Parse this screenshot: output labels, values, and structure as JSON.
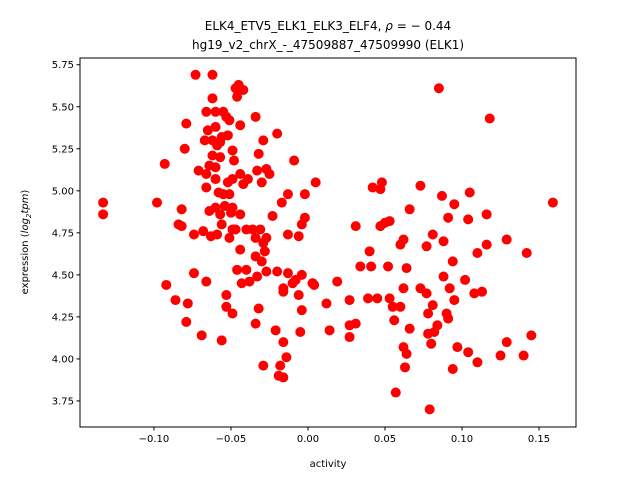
{
  "chart_data": {
    "type": "scatter",
    "title_line1_prefix": "ELK4_ETV5_ELK1_ELK3_ELF4, ",
    "title_rho": "ρ",
    "title_line1_suffix": " = − 0.44",
    "title_line2": "hg19_v2_chrX_-_47509887_47509990 (ELK1)",
    "xlabel": "activity",
    "ylabel_prefix": "expression (",
    "ylabel_log": "log",
    "ylabel_sub": "2",
    "ylabel_tpm": "tpm",
    "ylabel_suffix": ")",
    "xlim": [
      -0.148,
      0.174
    ],
    "ylim": [
      3.595,
      5.79
    ],
    "xticks": [
      -0.1,
      -0.05,
      0.0,
      0.05,
      0.1,
      0.15
    ],
    "xtick_labels": [
      "−0.10",
      "−0.05",
      "0.00",
      "0.05",
      "0.10",
      "0.15"
    ],
    "yticks": [
      3.75,
      4.0,
      4.25,
      4.5,
      4.75,
      5.0,
      5.25,
      5.5,
      5.75
    ],
    "ytick_labels": [
      "3.75",
      "4.00",
      "4.25",
      "4.50",
      "4.75",
      "5.00",
      "5.25",
      "5.50",
      "5.75"
    ],
    "grid": false,
    "marker_color": "#ff0000",
    "points": [
      [
        0.085,
        5.61
      ],
      [
        0.118,
        5.43
      ],
      [
        0.159,
        4.93
      ],
      [
        0.005,
        5.05
      ],
      [
        0.042,
        5.02
      ],
      [
        0.048,
        5.05
      ],
      [
        0.047,
        5.01
      ],
      [
        0.073,
        5.03
      ],
      [
        0.087,
        4.97
      ],
      [
        0.105,
        4.99
      ],
      [
        0.095,
        4.92
      ],
      [
        0.066,
        4.89
      ],
      [
        0.091,
        4.84
      ],
      [
        0.104,
        4.83
      ],
      [
        0.116,
        4.86
      ],
      [
        0.031,
        4.79
      ],
      [
        0.047,
        4.79
      ],
      [
        0.053,
        4.82
      ],
      [
        0.05,
        4.81
      ],
      [
        0.081,
        4.74
      ],
      [
        0.062,
        4.71
      ],
      [
        0.06,
        4.68
      ],
      [
        0.077,
        4.67
      ],
      [
        0.088,
        4.7
      ],
      [
        0.129,
        4.71
      ],
      [
        0.116,
        4.68
      ],
      [
        0.11,
        4.63
      ],
      [
        0.142,
        4.63
      ],
      [
        0.04,
        4.64
      ],
      [
        0.034,
        4.55
      ],
      [
        0.041,
        4.55
      ],
      [
        0.052,
        4.55
      ],
      [
        0.064,
        4.54
      ],
      [
        0.094,
        4.58
      ],
      [
        0.088,
        4.49
      ],
      [
        0.102,
        4.47
      ],
      [
        0.003,
        4.45
      ],
      [
        0.019,
        4.46
      ],
      [
        0.062,
        4.42
      ],
      [
        0.073,
        4.42
      ],
      [
        0.077,
        4.39
      ],
      [
        0.092,
        4.42
      ],
      [
        0.108,
        4.39
      ],
      [
        0.113,
        4.4
      ],
      [
        0.012,
        4.33
      ],
      [
        0.027,
        4.35
      ],
      [
        0.039,
        4.36
      ],
      [
        0.045,
        4.36
      ],
      [
        0.053,
        4.36
      ],
      [
        0.055,
        4.31
      ],
      [
        0.06,
        4.31
      ],
      [
        0.081,
        4.32
      ],
      [
        0.095,
        4.35
      ],
      [
        0.078,
        4.27
      ],
      [
        0.09,
        4.27
      ],
      [
        0.091,
        4.24
      ],
      [
        0.014,
        4.17
      ],
      [
        0.027,
        4.2
      ],
      [
        0.031,
        4.21
      ],
      [
        0.027,
        4.13
      ],
      [
        0.056,
        4.23
      ],
      [
        0.066,
        4.18
      ],
      [
        0.078,
        4.15
      ],
      [
        0.082,
        4.16
      ],
      [
        0.084,
        4.2
      ],
      [
        0.08,
        4.09
      ],
      [
        0.062,
        4.07
      ],
      [
        0.064,
        4.03
      ],
      [
        0.063,
        3.95
      ],
      [
        0.097,
        4.07
      ],
      [
        0.104,
        4.04
      ],
      [
        0.11,
        3.98
      ],
      [
        0.094,
        3.94
      ],
      [
        0.125,
        4.02
      ],
      [
        0.129,
        4.1
      ],
      [
        0.14,
        4.02
      ],
      [
        0.145,
        4.14
      ],
      [
        0.057,
        3.8
      ],
      [
        0.079,
        3.7
      ],
      [
        -0.073,
        5.69
      ],
      [
        -0.062,
        5.69
      ],
      [
        -0.045,
        5.63
      ],
      [
        -0.047,
        5.61
      ],
      [
        -0.042,
        5.6
      ],
      [
        -0.046,
        5.56
      ],
      [
        -0.062,
        5.55
      ],
      [
        -0.066,
        5.47
      ],
      [
        -0.06,
        5.47
      ],
      [
        -0.055,
        5.47
      ],
      [
        -0.053,
        5.44
      ],
      [
        -0.051,
        5.42
      ],
      [
        -0.034,
        5.44
      ],
      [
        -0.079,
        5.4
      ],
      [
        -0.044,
        5.39
      ],
      [
        -0.065,
        5.36
      ],
      [
        -0.06,
        5.38
      ],
      [
        -0.02,
        5.34
      ],
      [
        -0.052,
        5.33
      ],
      [
        -0.056,
        5.32
      ],
      [
        -0.067,
        5.3
      ],
      [
        -0.062,
        5.3
      ],
      [
        -0.059,
        5.27
      ],
      [
        -0.057,
        5.29
      ],
      [
        -0.029,
        5.3
      ],
      [
        -0.08,
        5.25
      ],
      [
        -0.049,
        5.24
      ],
      [
        -0.032,
        5.22
      ],
      [
        -0.062,
        5.21
      ],
      [
        -0.057,
        5.2
      ],
      [
        -0.048,
        5.18
      ],
      [
        -0.009,
        5.18
      ],
      [
        -0.093,
        5.16
      ],
      [
        -0.064,
        5.15
      ],
      [
        -0.06,
        5.14
      ],
      [
        -0.071,
        5.12
      ],
      [
        -0.066,
        5.1
      ],
      [
        -0.044,
        5.1
      ],
      [
        -0.033,
        5.12
      ],
      [
        -0.027,
        5.13
      ],
      [
        -0.025,
        5.1
      ],
      [
        -0.06,
        5.07
      ],
      [
        -0.052,
        5.05
      ],
      [
        -0.049,
        5.07
      ],
      [
        -0.042,
        5.04
      ],
      [
        -0.039,
        5.07
      ],
      [
        -0.03,
        5.05
      ],
      [
        -0.066,
        5.02
      ],
      [
        -0.058,
        4.99
      ],
      [
        -0.055,
        4.98
      ],
      [
        -0.051,
        4.98
      ],
      [
        -0.013,
        4.98
      ],
      [
        -0.002,
        4.98
      ],
      [
        -0.133,
        4.93
      ],
      [
        -0.133,
        4.86
      ],
      [
        -0.098,
        4.93
      ],
      [
        -0.082,
        4.89
      ],
      [
        -0.017,
        4.93
      ],
      [
        -0.064,
        4.88
      ],
      [
        -0.06,
        4.9
      ],
      [
        -0.057,
        4.86
      ],
      [
        -0.054,
        4.91
      ],
      [
        -0.049,
        4.9
      ],
      [
        -0.05,
        4.87
      ],
      [
        -0.044,
        4.86
      ],
      [
        -0.023,
        4.85
      ],
      [
        -0.002,
        4.84
      ],
      [
        -0.004,
        4.8
      ],
      [
        -0.084,
        4.8
      ],
      [
        -0.082,
        4.79
      ],
      [
        -0.056,
        4.8
      ],
      [
        -0.074,
        4.74
      ],
      [
        -0.068,
        4.76
      ],
      [
        -0.063,
        4.73
      ],
      [
        -0.059,
        4.74
      ],
      [
        -0.051,
        4.72
      ],
      [
        -0.049,
        4.77
      ],
      [
        -0.047,
        4.77
      ],
      [
        -0.04,
        4.77
      ],
      [
        -0.036,
        4.77
      ],
      [
        -0.031,
        4.77
      ],
      [
        -0.034,
        4.72
      ],
      [
        -0.027,
        4.72
      ],
      [
        -0.029,
        4.69
      ],
      [
        -0.013,
        4.74
      ],
      [
        -0.006,
        4.73
      ],
      [
        -0.044,
        4.65
      ],
      [
        -0.034,
        4.61
      ],
      [
        -0.028,
        4.64
      ],
      [
        -0.03,
        4.58
      ],
      [
        -0.074,
        4.51
      ],
      [
        -0.066,
        4.46
      ],
      [
        -0.046,
        4.53
      ],
      [
        -0.04,
        4.53
      ],
      [
        -0.033,
        4.49
      ],
      [
        -0.027,
        4.52
      ],
      [
        -0.02,
        4.52
      ],
      [
        -0.013,
        4.51
      ],
      [
        -0.004,
        4.5
      ],
      [
        -0.043,
        4.45
      ],
      [
        -0.038,
        4.46
      ],
      [
        -0.016,
        4.42
      ],
      [
        -0.016,
        4.4
      ],
      [
        -0.01,
        4.45
      ],
      [
        -0.008,
        4.47
      ],
      [
        0.003,
        4.45
      ],
      [
        0.004,
        4.44
      ],
      [
        -0.092,
        4.44
      ],
      [
        -0.086,
        4.35
      ],
      [
        -0.078,
        4.33
      ],
      [
        -0.053,
        4.38
      ],
      [
        -0.053,
        4.31
      ],
      [
        -0.049,
        4.27
      ],
      [
        -0.032,
        4.3
      ],
      [
        -0.006,
        4.38
      ],
      [
        -0.004,
        4.29
      ],
      [
        -0.079,
        4.22
      ],
      [
        -0.069,
        4.14
      ],
      [
        -0.056,
        4.11
      ],
      [
        -0.034,
        4.21
      ],
      [
        -0.021,
        4.17
      ],
      [
        -0.016,
        4.1
      ],
      [
        -0.005,
        4.16
      ],
      [
        -0.014,
        4.01
      ],
      [
        -0.029,
        3.96
      ],
      [
        -0.018,
        3.96
      ],
      [
        -0.019,
        3.9
      ],
      [
        -0.016,
        3.89
      ]
    ]
  }
}
